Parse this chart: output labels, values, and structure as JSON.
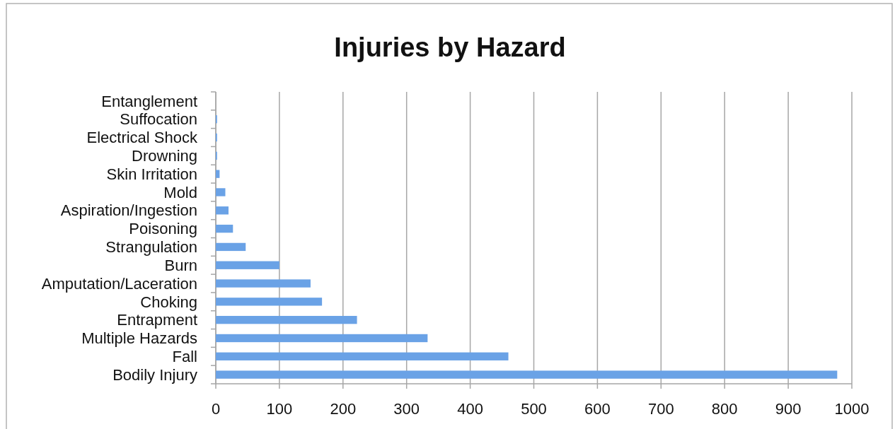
{
  "chart_data": {
    "type": "bar",
    "orientation": "horizontal",
    "title": "Injuries by Hazard",
    "categories": [
      "Entanglement",
      "Suffocation",
      "Electrical Shock",
      "Drowning",
      "Skin Irritation",
      "Mold",
      "Aspiration/Ingestion",
      "Poisoning",
      "Strangulation",
      "Burn",
      "Amputation/Laceration",
      "Choking",
      "Entrapment",
      "Multiple Hazards",
      "Fall",
      "Bodily Injury"
    ],
    "values": [
      0,
      2,
      2,
      2,
      6,
      15,
      20,
      27,
      47,
      100,
      149,
      167,
      222,
      333,
      460,
      977
    ],
    "color": "#6aa2e6",
    "xlim": [
      0,
      1000
    ],
    "xticks": [
      0,
      100,
      200,
      300,
      400,
      500,
      600,
      700,
      800,
      900,
      1000
    ],
    "grid": "x"
  }
}
